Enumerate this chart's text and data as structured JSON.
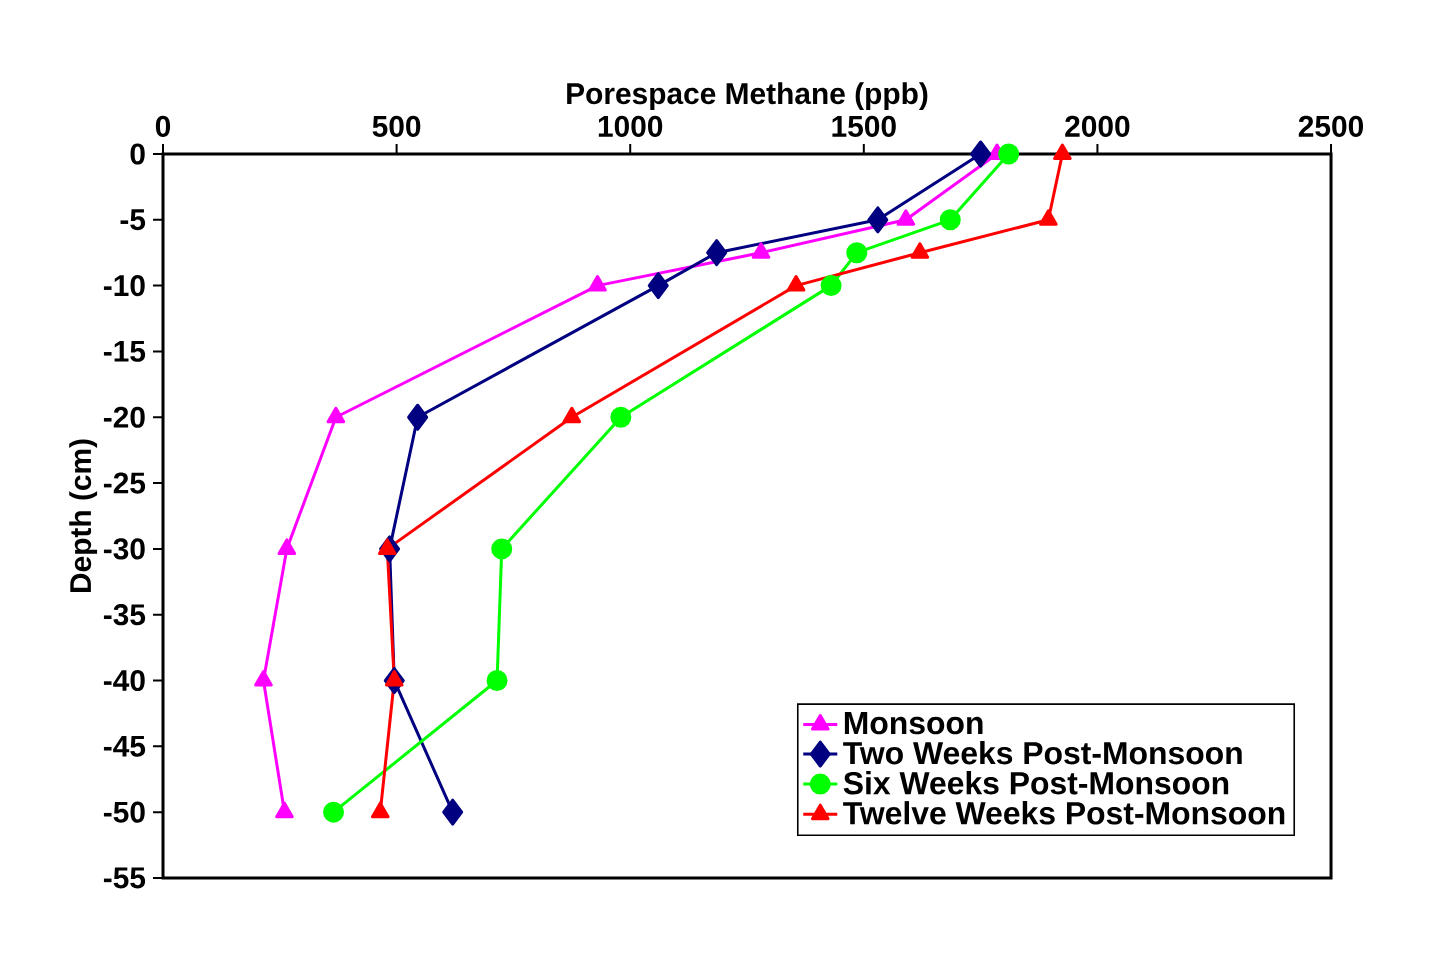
{
  "chart_data": {
    "type": "line",
    "xlabel": "Porespace Methane (ppb)",
    "ylabel": "Depth (cm)",
    "xlim": [
      0,
      2500
    ],
    "xticks": [
      0,
      500,
      1000,
      1500,
      2000,
      2500
    ],
    "ylim": [
      -55,
      0
    ],
    "yticks": [
      -55,
      -50,
      -45,
      -40,
      -35,
      -30,
      -25,
      -20,
      -15,
      -10,
      -5,
      0
    ],
    "legend": "bottom right",
    "line_style": "solid",
    "series": [
      {
        "name": "Monsoon",
        "color": "#ff00ff",
        "marker": "triangle",
        "x": [
          1785,
          1590,
          1280,
          930,
          370,
          265,
          215,
          260
        ],
        "values": [
          0,
          -5,
          -7.5,
          -10,
          -20,
          -30,
          -40,
          -50
        ]
      },
      {
        "name": "Two Weeks Post-Monsoon",
        "color": "#000080",
        "marker": "diamond",
        "x": [
          1750,
          1530,
          1185,
          1060,
          545,
          485,
          495,
          620
        ],
        "values": [
          0,
          -5,
          -7.5,
          -10,
          -20,
          -30,
          -40,
          -50
        ]
      },
      {
        "name": "Six Weeks Post-Monsoon",
        "color": "#00ff00",
        "marker": "circle",
        "x": [
          1810,
          1685,
          1485,
          1430,
          980,
          725,
          715,
          365
        ],
        "values": [
          0,
          -5,
          -7.5,
          -10,
          -20,
          -30,
          -40,
          -50
        ]
      },
      {
        "name": "Twelve Weeks Post-Monsoon",
        "color": "#ff0000",
        "marker": "triangle",
        "x": [
          1925,
          1895,
          1620,
          1355,
          875,
          480,
          495,
          465
        ],
        "values": [
          0,
          -5,
          -7.5,
          -10,
          -20,
          -30,
          -40,
          -50
        ]
      }
    ]
  }
}
